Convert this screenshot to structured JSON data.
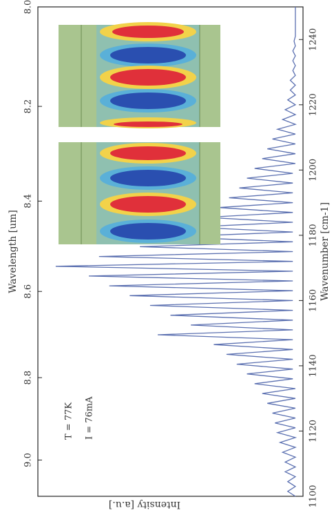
{
  "chart_data": {
    "type": "line",
    "xlabel": "Wavenumber [cm-1]",
    "ylabel": "Intensity [a.u.]",
    "x2label": "Wavelength [um]",
    "annotations": [
      "T = 77K",
      "I = 76mA"
    ],
    "xlim": [
      1100,
      1250
    ],
    "xticks": [
      1100,
      1120,
      1140,
      1160,
      1180,
      1200,
      1220,
      1240
    ],
    "x2ticks": [
      {
        "value": 8,
        "label": "8.0"
      },
      8.2,
      8.4,
      8.6,
      8.8,
      {
        "value": 9,
        "label": "9.0"
      }
    ],
    "ylim": [
      -0.02,
      1.02
    ],
    "color": "#5a6fb0",
    "x": [
      1100,
      1101.5,
      1103,
      1104.5,
      1106,
      1107.5,
      1109,
      1110.5,
      1112,
      1113.5,
      1115,
      1116.5,
      1118,
      1119.5,
      1121,
      1122.5,
      1124,
      1125.5,
      1127,
      1128.5,
      1130,
      1131.5,
      1133,
      1134.5,
      1136,
      1137.5,
      1139,
      1140.5,
      1142,
      1143.5,
      1145,
      1146.5,
      1148,
      1149.5,
      1151,
      1152.5,
      1154,
      1155.5,
      1157,
      1158.5,
      1160,
      1161.5,
      1163,
      1164.5,
      1166,
      1167.5,
      1169,
      1170.5,
      1172,
      1173.5,
      1175,
      1176.5,
      1178,
      1179.5,
      1181,
      1182.5,
      1184,
      1185.5,
      1187,
      1188.5,
      1190,
      1191.5,
      1193,
      1194.5,
      1196,
      1197.5,
      1199,
      1200.5,
      1202,
      1203.5,
      1205,
      1206.5,
      1208,
      1209.5,
      1211,
      1212.5,
      1214,
      1215.5,
      1217,
      1218.5,
      1220,
      1221.5,
      1223,
      1224.5,
      1226,
      1227.5,
      1229,
      1230.5,
      1232,
      1233.5,
      1235,
      1236.5,
      1238,
      1239.5,
      1241,
      1242.5,
      1244,
      1245.5,
      1247,
      1248.5,
      1250
    ],
    "values": [
      0.01,
      0.04,
      0.01,
      0.04,
      0.01,
      0.05,
      0.01,
      0.05,
      0.01,
      0.06,
      0.01,
      0.07,
      0.01,
      0.08,
      0.01,
      0.09,
      0.01,
      0.1,
      0.01,
      0.12,
      0.01,
      0.14,
      0.01,
      0.17,
      0.02,
      0.2,
      0.02,
      0.24,
      0.02,
      0.28,
      0.02,
      0.33,
      0.02,
      0.55,
      0.02,
      0.42,
      0.02,
      0.5,
      0.02,
      0.58,
      0.02,
      0.66,
      0.02,
      0.74,
      0.02,
      0.82,
      0.02,
      0.95,
      0.02,
      0.78,
      0.02,
      0.62,
      0.02,
      0.5,
      0.02,
      0.42,
      0.02,
      0.36,
      0.02,
      0.31,
      0.02,
      0.27,
      0.02,
      0.23,
      0.02,
      0.2,
      0.02,
      0.17,
      0.01,
      0.14,
      0.01,
      0.12,
      0.01,
      0.1,
      0.01,
      0.08,
      0.01,
      0.06,
      0.01,
      0.05,
      0.01,
      0.04,
      0.01,
      0.03,
      0.01,
      0.03,
      0.01,
      0.02,
      0.01,
      0.02,
      0.01,
      0.02,
      0.01,
      0.015,
      0.01,
      0.01,
      0.01,
      0.01,
      0.01,
      0.01,
      0.01
    ]
  }
}
